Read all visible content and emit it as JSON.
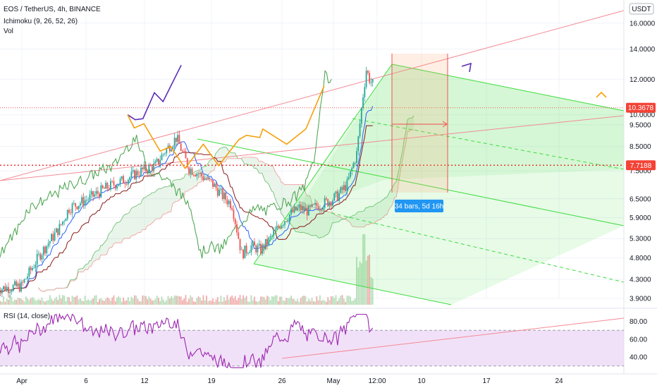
{
  "header": {
    "symbol_line": "EOS / TetherUS, 4h, BINANCE",
    "indicator_1": "Ichimoku (9, 26, 52, 26)",
    "indicator_2": "Vol",
    "currency_badge": "USDT"
  },
  "rsi_panel": {
    "label": "RSI (14, close)"
  },
  "colors": {
    "up_candle": "#26a69a",
    "down_candle": "#ef5350",
    "cloud_green": "#4caf50",
    "cloud_red": "#ef5350",
    "channel": "#3cdc3c",
    "forecast_purple": "#5b2cb8",
    "forecast_orange": "#f5a00a",
    "rsi_line": "#9c27b0",
    "rsi_band": "#e8cdf3",
    "price_badge": "#f44336",
    "measure_badge": "#2196f3"
  },
  "chart_data": [
    {
      "type": "candlestick",
      "title": "EOS / TetherUS, 4h, BINANCE",
      "y_scale": "log",
      "ylim": [
        3.5,
        20.0
      ],
      "y_ticks": [
        "16.0000",
        "14.0000",
        "12.0000",
        "10.0000",
        "9.5000",
        "8.5000",
        "7.5000",
        "6.5000",
        "5.9000",
        "5.3000",
        "4.8000",
        "4.3000",
        "3.9000"
      ],
      "y_tick_values": [
        16.0,
        14.0,
        12.0,
        10.0,
        9.5,
        8.5,
        7.5,
        6.5,
        5.9,
        5.3,
        4.8,
        4.3,
        3.9
      ],
      "x_ticks": [
        "Apr",
        "6",
        "12",
        "19",
        "26",
        "May",
        "12:00",
        "10",
        "17",
        "24"
      ],
      "price_labels": [
        {
          "text": "10.3678",
          "value": 10.3678
        },
        {
          "text": "7.7188",
          "value": 7.7188
        }
      ],
      "horizontal_levels": [
        10.3678,
        7.7188
      ],
      "indicators": [
        "Ichimoku (9, 26, 52, 26)",
        "Vol"
      ],
      "measure_label": "34 bars, 5d 16h",
      "forecast_paths": [
        {
          "color": "purple",
          "points": [
            [
              12.1,
              10.0
            ],
            [
              12.9,
              9.75
            ],
            [
              13.7,
              9.8
            ],
            [
              14.9,
              11.2
            ],
            [
              15.8,
              10.7
            ],
            [
              17.7,
              12.9
            ]
          ]
        },
        {
          "color": "orange",
          "points": [
            [
              12.1,
              10.0
            ],
            [
              12.8,
              9.35
            ],
            [
              13.8,
              9.55
            ],
            [
              15.5,
              8.3
            ],
            [
              16.6,
              8.5
            ],
            [
              18.1,
              7.6
            ],
            [
              20.0,
              8.6
            ],
            [
              21.6,
              7.7
            ],
            [
              23.7,
              8.8
            ],
            [
              24.5,
              9.0
            ],
            [
              25.9,
              8.9
            ],
            [
              26.2,
              9.3
            ],
            [
              28.7,
              8.6
            ],
            [
              30.7,
              9.3
            ],
            [
              32.6,
              11.6
            ]
          ]
        }
      ]
    },
    {
      "type": "line",
      "title": "RSI (14, close)",
      "ylim": [
        25,
        90
      ],
      "y_ticks": [
        "80.00",
        "60.00",
        "40.00"
      ],
      "y_tick_values": [
        80,
        60,
        40
      ],
      "band": [
        30,
        70
      ]
    }
  ]
}
